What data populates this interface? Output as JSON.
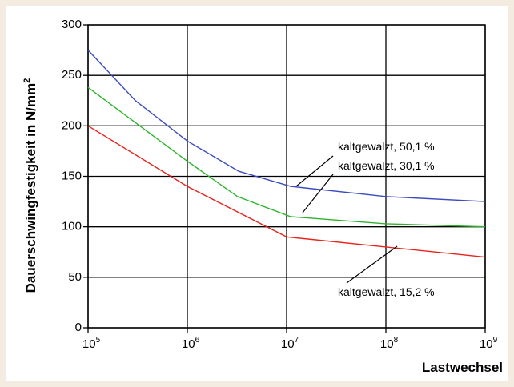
{
  "chart_data": {
    "type": "line",
    "xlabel": "Lastwechsel",
    "ylabel": "Dauerschwingfestigkeit in N/mm",
    "ylabel_sup": "2",
    "x_scale": "log",
    "xlim": [
      100000,
      1000000000
    ],
    "ylim": [
      0,
      300
    ],
    "y_ticks": [
      "0",
      "50",
      "100",
      "150",
      "200",
      "250",
      "300"
    ],
    "x_ticks": [
      {
        "value": 100000,
        "base": "10",
        "exp": "5"
      },
      {
        "value": 1000000,
        "base": "10",
        "exp": "6"
      },
      {
        "value": 10000000,
        "base": "10",
        "exp": "7"
      },
      {
        "value": 100000000,
        "base": "10",
        "exp": "8"
      },
      {
        "value": 1000000000,
        "base": "10",
        "exp": "9"
      }
    ],
    "grid": true,
    "series": [
      {
        "name": "kaltgewalzt, 50,1 %",
        "color": "#3b4cc0",
        "x": [
          100000,
          300000,
          1000000,
          3300000,
          11000000,
          100000000,
          1000000000
        ],
        "y": [
          275,
          225,
          185,
          155,
          140,
          130,
          125
        ]
      },
      {
        "name": "kaltgewalzt, 30,1 %",
        "color": "#2db52d",
        "x": [
          100000,
          1000000,
          3200000,
          11000000,
          100000000,
          1000000000
        ],
        "y": [
          238,
          165,
          130,
          110,
          103,
          100
        ]
      },
      {
        "name": "kaltgewalzt, 15,2 %",
        "color": "#e8241c",
        "x": [
          100000,
          1000000,
          10000000,
          100000000,
          1000000000
        ],
        "y": [
          200,
          140,
          90,
          80,
          70
        ]
      }
    ]
  }
}
